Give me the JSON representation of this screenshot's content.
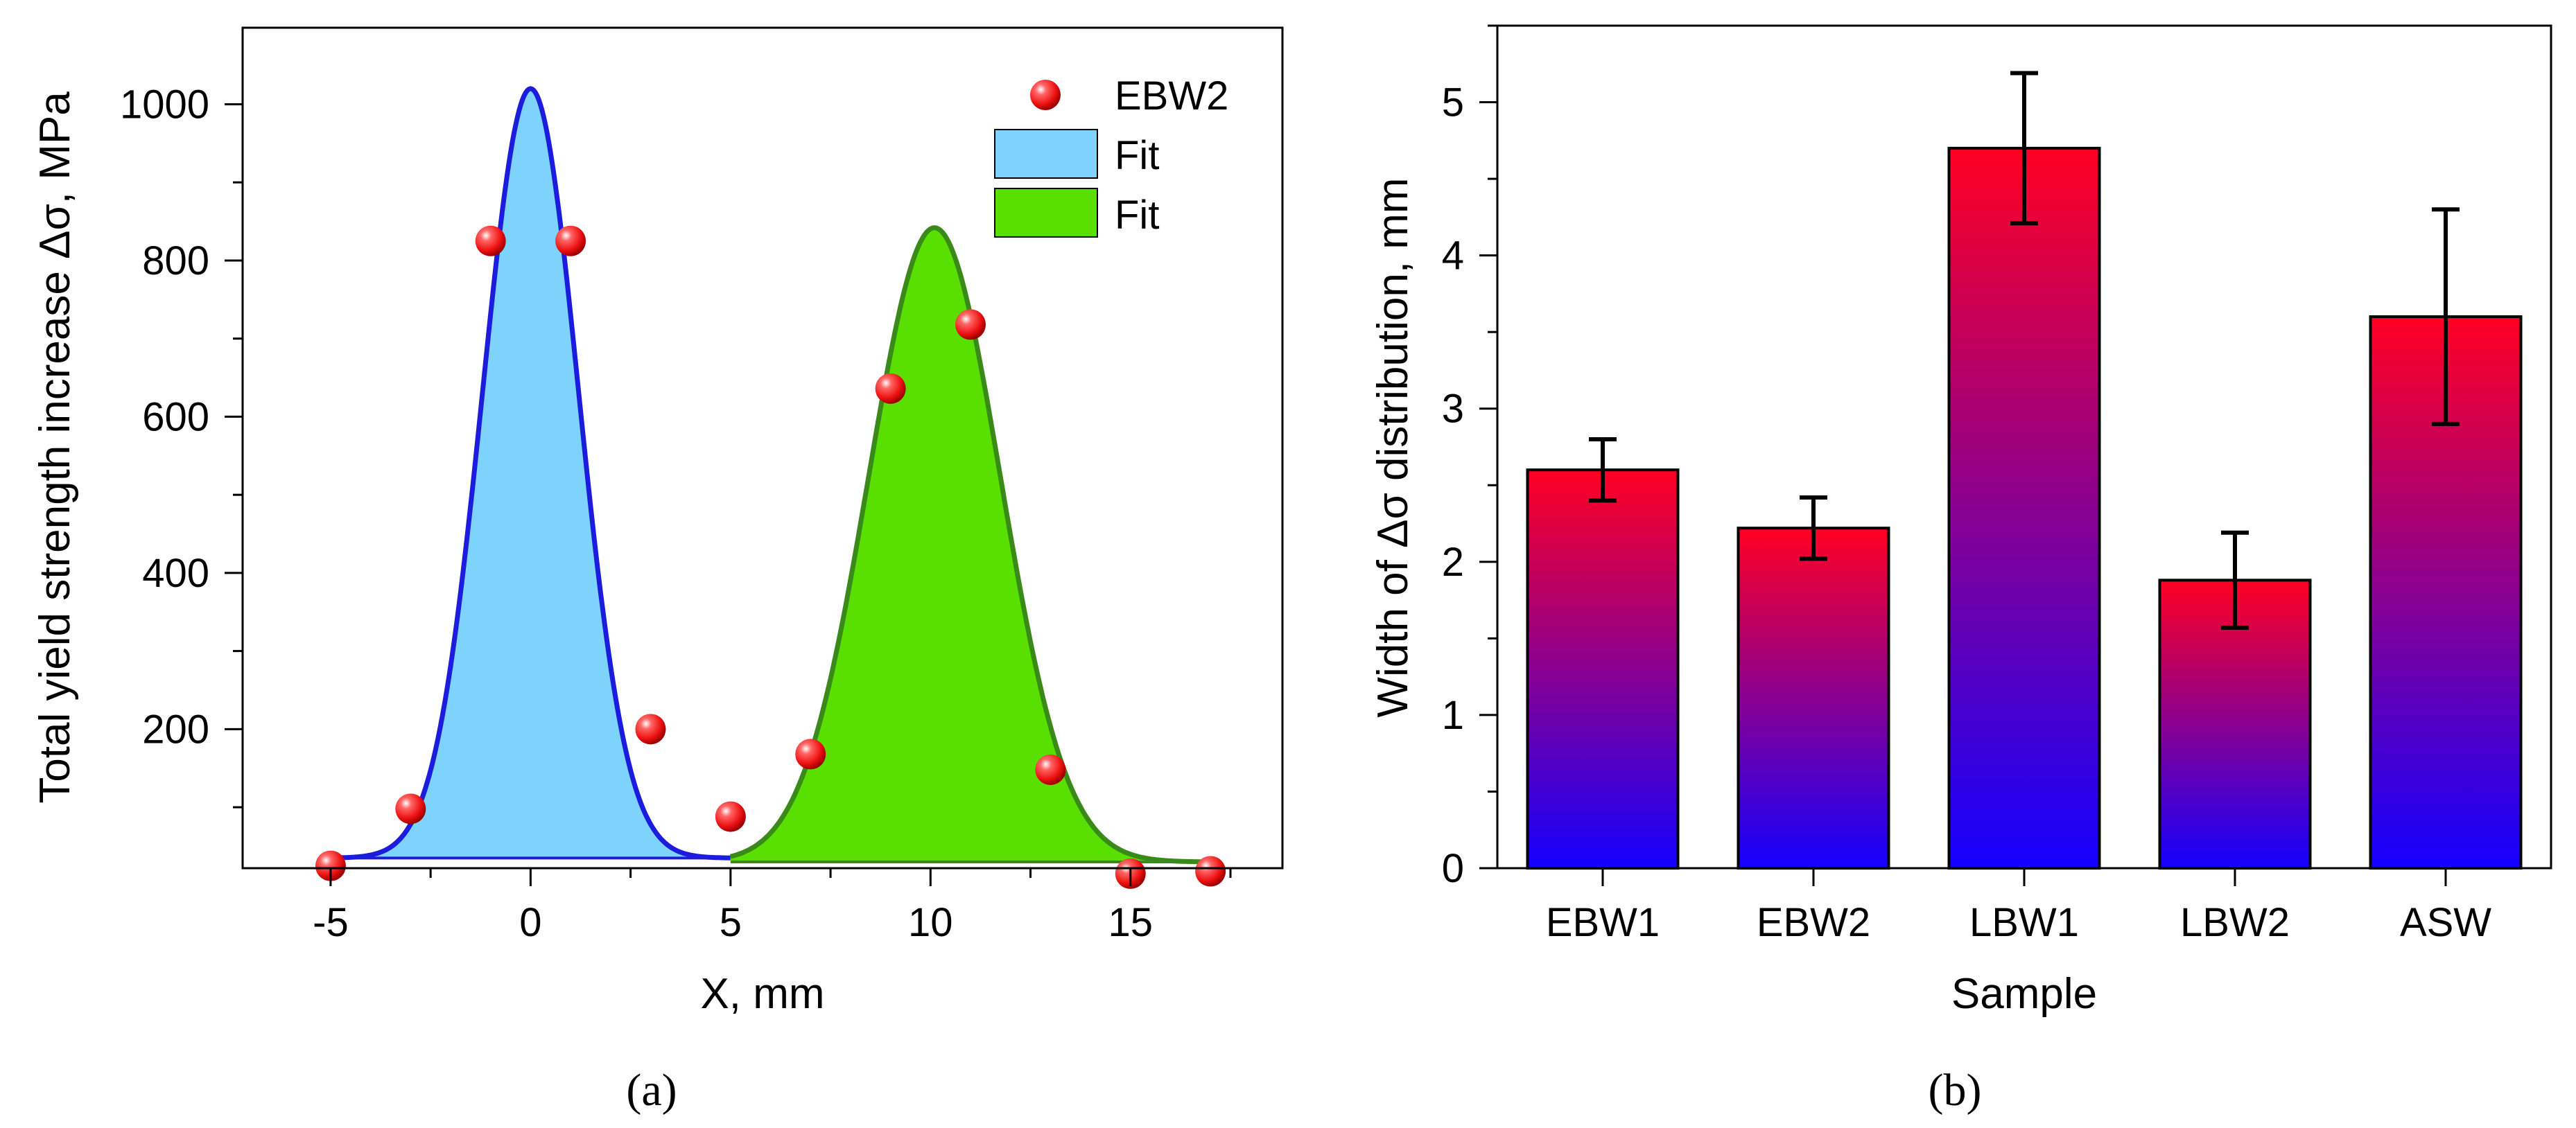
{
  "panel_labels": [
    "(a)",
    "(b)"
  ],
  "colors": {
    "markers": "#ee1111",
    "fit1_fill": "#7dd3fb",
    "fit1_line": "#1c1cdc",
    "fit2_fill": "#5ae000",
    "fit2_line": "#3a8a1a",
    "bar_top": "#ff0022",
    "bar_bottom": "#1400ff"
  },
  "chart_data": [
    {
      "type": "scatter",
      "panel": "a",
      "xlabel": "X, mm",
      "ylabel": "Total yield strength increase Δσ, MPa",
      "xlim": [
        -7.2,
        18.8
      ],
      "ylim": [
        22,
        1098
      ],
      "xticks": [
        -5,
        0,
        5,
        10,
        15
      ],
      "yticks": [
        200,
        400,
        600,
        800,
        1000
      ],
      "legend": {
        "position": "top-right",
        "entries": [
          "EBW2",
          "Fit",
          "Fit"
        ]
      },
      "grid": false,
      "series": [
        {
          "name": "EBW2",
          "kind": "markers",
          "x": [
            -5,
            -3,
            -1,
            1,
            3,
            5,
            7,
            9,
            11,
            13,
            15,
            17
          ],
          "y": [
            25,
            98,
            825,
            825,
            200,
            88,
            168,
            636,
            718,
            148,
            15,
            18
          ]
        },
        {
          "name": "Fit",
          "kind": "gaussian-fill",
          "baseline": 35,
          "amplitude": 985,
          "center": 0,
          "sigma": 1.2,
          "x_range": [
            -5,
            5
          ],
          "x": [
            -5,
            -4,
            -3,
            -2,
            -1,
            0,
            1,
            2,
            3,
            4,
            5
          ],
          "y": [
            35,
            42,
            71,
            262,
            715,
            1020,
            715,
            262,
            71,
            42,
            35
          ]
        },
        {
          "name": "Fit",
          "kind": "gaussian-fill",
          "baseline": 30,
          "amplitude": 812,
          "center": 10.1,
          "sigma": 1.65,
          "x_range": [
            5,
            17
          ],
          "x": [
            5,
            7,
            9,
            10.1,
            11,
            13,
            15,
            17
          ],
          "y": [
            30,
            142,
            650,
            842,
            700,
            198,
            32,
            30
          ]
        }
      ]
    },
    {
      "type": "bar",
      "panel": "b",
      "xlabel": "Sample",
      "ylabel": "Width of Δσ distribution, mm",
      "categories": [
        "EBW1",
        "EBW2",
        "LBW1",
        "LBW2",
        "ASW"
      ],
      "values": [
        2.6,
        2.22,
        4.7,
        1.88,
        3.6
      ],
      "errors": [
        0.2,
        0.2,
        0.49,
        0.31,
        0.7
      ],
      "ylim": [
        0,
        5.5
      ],
      "yticks": [
        0,
        1,
        2,
        3,
        4,
        5
      ],
      "grid": false
    }
  ]
}
